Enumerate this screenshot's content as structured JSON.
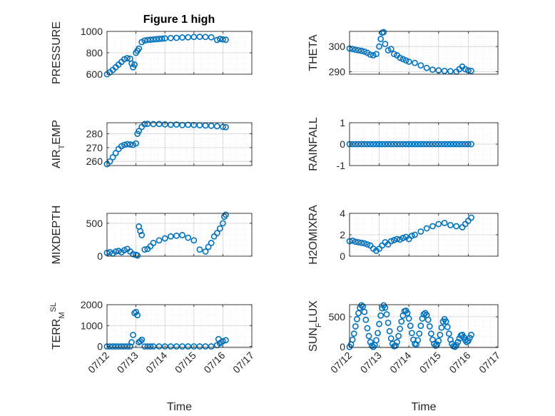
{
  "figure": {
    "title": "Figure 1 high"
  },
  "colors": {
    "marker": "#0072BD",
    "axis": "#262626",
    "grid": "#d0d0d0",
    "grid_minor": "#e3e3e3"
  },
  "chart_data": [
    {
      "type": "scatter",
      "title": "Figure 1 high",
      "xlabel": "",
      "ylabel": "PRESSURE",
      "ylim": [
        600,
        1000
      ],
      "yticks": [
        600,
        800,
        1000
      ],
      "ytick_labels": [
        "600",
        "800",
        "1000"
      ],
      "x": [
        0,
        0.1,
        0.2,
        0.3,
        0.4,
        0.5,
        0.6,
        0.7,
        0.8,
        0.85,
        0.9,
        0.95,
        1.0,
        1.05,
        1.1,
        1.2,
        1.3,
        1.4,
        1.5,
        1.6,
        1.7,
        1.8,
        1.9,
        2.0,
        2.2,
        2.4,
        2.6,
        2.8,
        3.0,
        3.2,
        3.4,
        3.6,
        3.8,
        3.9,
        4.0,
        4.1
      ],
      "y": [
        600,
        618,
        640,
        665,
        690,
        715,
        740,
        750,
        745,
        700,
        665,
        690,
        800,
        820,
        840,
        900,
        915,
        920,
        922,
        925,
        927,
        930,
        932,
        935,
        938,
        940,
        943,
        945,
        948,
        950,
        948,
        945,
        920,
        930,
        925,
        922
      ]
    },
    {
      "type": "scatter",
      "title": "",
      "xlabel": "",
      "ylabel": "THETA",
      "ylim": [
        289,
        306
      ],
      "yticks": [
        290,
        300
      ],
      "ytick_labels": [
        "290",
        "300"
      ],
      "x": [
        0,
        0.1,
        0.2,
        0.3,
        0.4,
        0.5,
        0.6,
        0.7,
        0.8,
        0.9,
        1.0,
        1.05,
        1.1,
        1.15,
        1.2,
        1.3,
        1.4,
        1.5,
        1.6,
        1.7,
        1.8,
        1.9,
        2.0,
        2.2,
        2.4,
        2.6,
        2.8,
        3.0,
        3.2,
        3.4,
        3.6,
        3.7,
        3.8,
        3.9,
        4.0,
        4.1
      ],
      "y": [
        299.2,
        299,
        298.7,
        298.5,
        298.3,
        298,
        297.5,
        296.8,
        296.5,
        297,
        300,
        303,
        305.5,
        305.7,
        301,
        298.5,
        299,
        297,
        296.5,
        295.5,
        295,
        294.5,
        294,
        293.5,
        292.5,
        291.5,
        290.8,
        290.5,
        290.3,
        290.2,
        290,
        291,
        292,
        291,
        290.5,
        290.3
      ]
    },
    {
      "type": "scatter",
      "title": "",
      "xlabel": "",
      "ylabel": "AIR_TEMP",
      "ylim": [
        257,
        288
      ],
      "yticks": [
        260,
        270,
        280
      ],
      "ytick_labels": [
        "260",
        "270",
        "280"
      ],
      "x": [
        0,
        0.1,
        0.2,
        0.3,
        0.4,
        0.5,
        0.6,
        0.7,
        0.8,
        0.9,
        1.0,
        1.05,
        1.1,
        1.2,
        1.3,
        1.4,
        1.6,
        1.8,
        2.0,
        2.2,
        2.4,
        2.6,
        2.8,
        3.0,
        3.2,
        3.4,
        3.6,
        3.8,
        4.0,
        4.1
      ],
      "y": [
        258,
        260,
        263,
        266,
        269,
        271,
        272,
        272.5,
        272.3,
        272,
        273,
        280,
        282,
        285,
        287,
        287.2,
        287,
        287.1,
        286.8,
        286.5,
        286.7,
        286.3,
        286.5,
        286.4,
        286.2,
        286,
        285.8,
        285.5,
        285,
        284.8
      ]
    },
    {
      "type": "scatter",
      "title": "",
      "xlabel": "",
      "ylabel": "RAINFALL",
      "ylim": [
        -1,
        1
      ],
      "yticks": [
        -1,
        0,
        1
      ],
      "ytick_labels": [
        "-1",
        "0",
        "1"
      ],
      "x": [
        0,
        0.1,
        0.2,
        0.3,
        0.4,
        0.5,
        0.6,
        0.7,
        0.8,
        0.9,
        1.0,
        1.1,
        1.2,
        1.3,
        1.4,
        1.5,
        1.6,
        1.7,
        1.8,
        1.9,
        2.0,
        2.1,
        2.2,
        2.3,
        2.4,
        2.5,
        2.6,
        2.7,
        2.8,
        2.9,
        3.0,
        3.1,
        3.2,
        3.3,
        3.4,
        3.5,
        3.6,
        3.7,
        3.8,
        3.9,
        4.0,
        4.1
      ],
      "y": [
        0,
        0,
        0,
        0,
        0,
        0,
        0,
        0,
        0,
        0,
        0,
        0,
        0,
        0,
        0,
        0,
        0,
        0,
        0,
        0,
        0,
        0,
        0,
        0,
        0,
        0,
        0,
        0,
        0,
        0,
        0,
        0,
        0,
        0,
        0,
        0,
        0,
        0,
        0,
        0,
        0,
        0
      ]
    },
    {
      "type": "scatter",
      "title": "",
      "xlabel": "",
      "ylabel": "MIXDEPTH",
      "ylim": [
        0,
        650
      ],
      "yticks": [
        0,
        500
      ],
      "ytick_labels": [
        "0",
        "500"
      ],
      "x": [
        0,
        0.1,
        0.2,
        0.3,
        0.4,
        0.5,
        0.6,
        0.7,
        0.8,
        0.9,
        1.0,
        1.05,
        1.1,
        1.15,
        1.2,
        1.3,
        1.4,
        1.5,
        1.6,
        1.8,
        2.0,
        2.2,
        2.4,
        2.6,
        2.8,
        3.0,
        3.2,
        3.4,
        3.5,
        3.6,
        3.7,
        3.8,
        3.9,
        4.0,
        4.05,
        4.1
      ],
      "y": [
        50,
        60,
        40,
        70,
        80,
        60,
        90,
        110,
        70,
        30,
        20,
        10,
        450,
        380,
        320,
        100,
        110,
        150,
        200,
        240,
        270,
        300,
        310,
        320,
        280,
        240,
        100,
        70,
        140,
        200,
        300,
        350,
        420,
        500,
        600,
        630
      ]
    },
    {
      "type": "scatter",
      "title": "",
      "xlabel": "",
      "ylabel": "H2OMIXRA",
      "ylim": [
        0,
        4
      ],
      "yticks": [
        0,
        2,
        4
      ],
      "ytick_labels": [
        "0",
        "2",
        "4"
      ],
      "x": [
        0,
        0.1,
        0.2,
        0.3,
        0.4,
        0.5,
        0.6,
        0.7,
        0.8,
        0.9,
        1.0,
        1.1,
        1.2,
        1.3,
        1.4,
        1.5,
        1.6,
        1.7,
        1.8,
        1.9,
        2.0,
        2.1,
        2.2,
        2.4,
        2.6,
        2.8,
        3.0,
        3.2,
        3.4,
        3.6,
        3.8,
        3.9,
        4.0,
        4.1
      ],
      "y": [
        1.4,
        1.45,
        1.35,
        1.3,
        1.25,
        1.2,
        1.1,
        1.0,
        0.7,
        0.5,
        0.7,
        1.0,
        1.3,
        1.1,
        1.4,
        1.5,
        1.6,
        1.55,
        1.7,
        1.8,
        1.6,
        1.9,
        2.0,
        2.3,
        2.6,
        2.8,
        3.0,
        3.1,
        2.9,
        2.8,
        2.7,
        3.0,
        3.3,
        3.6
      ]
    },
    {
      "type": "scatter",
      "title": "",
      "xlabel": "Time",
      "ylabel": "TERR_MSL",
      "ylim": [
        -50,
        2000
      ],
      "yticks": [
        0,
        1000,
        2000
      ],
      "ytick_labels": [
        "0",
        "1000",
        "2000"
      ],
      "x": [
        0,
        0.1,
        0.2,
        0.3,
        0.4,
        0.5,
        0.6,
        0.7,
        0.8,
        0.85,
        0.9,
        0.95,
        1.0,
        1.05,
        1.1,
        1.15,
        1.2,
        1.3,
        1.4,
        1.5,
        1.6,
        1.8,
        2.0,
        2.2,
        2.4,
        2.6,
        2.8,
        3.0,
        3.2,
        3.4,
        3.6,
        3.8,
        3.85,
        3.9,
        3.95,
        4.0,
        4.1
      ],
      "y": [
        0,
        0,
        0,
        0,
        0,
        0,
        0,
        0,
        0,
        200,
        550,
        1600,
        1650,
        1500,
        200,
        250,
        320,
        0,
        0,
        0,
        0,
        0,
        0,
        0,
        0,
        0,
        0,
        0,
        0,
        0,
        0,
        60,
        350,
        150,
        200,
        250,
        300
      ]
    },
    {
      "type": "scatter",
      "title": "",
      "xlabel": "Time",
      "ylabel": "SUN_FLUX",
      "ylim": [
        -10,
        700
      ],
      "yticks": [
        0,
        500
      ],
      "ytick_labels": [
        "0",
        "500"
      ],
      "x": [
        0,
        0.05,
        0.1,
        0.15,
        0.2,
        0.25,
        0.3,
        0.35,
        0.4,
        0.45,
        0.5,
        0.55,
        0.6,
        0.65,
        0.7,
        0.75,
        0.8,
        0.85,
        0.9,
        0.95,
        1.0,
        1.05,
        1.1,
        1.15,
        1.2,
        1.25,
        1.3,
        1.35,
        1.4,
        1.45,
        1.5,
        1.55,
        1.6,
        1.65,
        1.7,
        1.75,
        1.8,
        1.85,
        1.9,
        1.95,
        2.0,
        2.05,
        2.1,
        2.15,
        2.2,
        2.25,
        2.3,
        2.35,
        2.4,
        2.45,
        2.5,
        2.55,
        2.6,
        2.65,
        2.7,
        2.75,
        2.8,
        2.85,
        2.9,
        2.95,
        3.0,
        3.05,
        3.1,
        3.15,
        3.2,
        3.25,
        3.3,
        3.35,
        3.4,
        3.45,
        3.5,
        3.55,
        3.6,
        3.65,
        3.7,
        3.75,
        3.8,
        3.85,
        3.9,
        3.95,
        4.0,
        4.05,
        4.1
      ],
      "y": [
        0,
        40,
        120,
        220,
        340,
        460,
        560,
        650,
        690,
        670,
        580,
        450,
        310,
        180,
        80,
        20,
        0,
        30,
        110,
        230,
        380,
        520,
        640,
        690,
        650,
        540,
        400,
        260,
        140,
        50,
        10,
        20,
        80,
        180,
        300,
        420,
        520,
        590,
        600,
        560,
        470,
        350,
        230,
        120,
        50,
        40,
        110,
        220,
        350,
        470,
        540,
        560,
        530,
        450,
        340,
        220,
        120,
        50,
        20,
        40,
        100,
        200,
        320,
        420,
        460,
        420,
        330,
        220,
        120,
        50,
        10,
        0,
        30,
        80,
        140,
        190,
        200,
        160,
        110,
        80,
        100,
        150,
        200
      ]
    }
  ],
  "xaxis": {
    "min": 0,
    "max": 5,
    "ticks": [
      0,
      1,
      2,
      3,
      4,
      5
    ],
    "tick_labels": [
      "07/12",
      "07/13",
      "07/14",
      "07/15",
      "07/16",
      "07/17"
    ]
  }
}
